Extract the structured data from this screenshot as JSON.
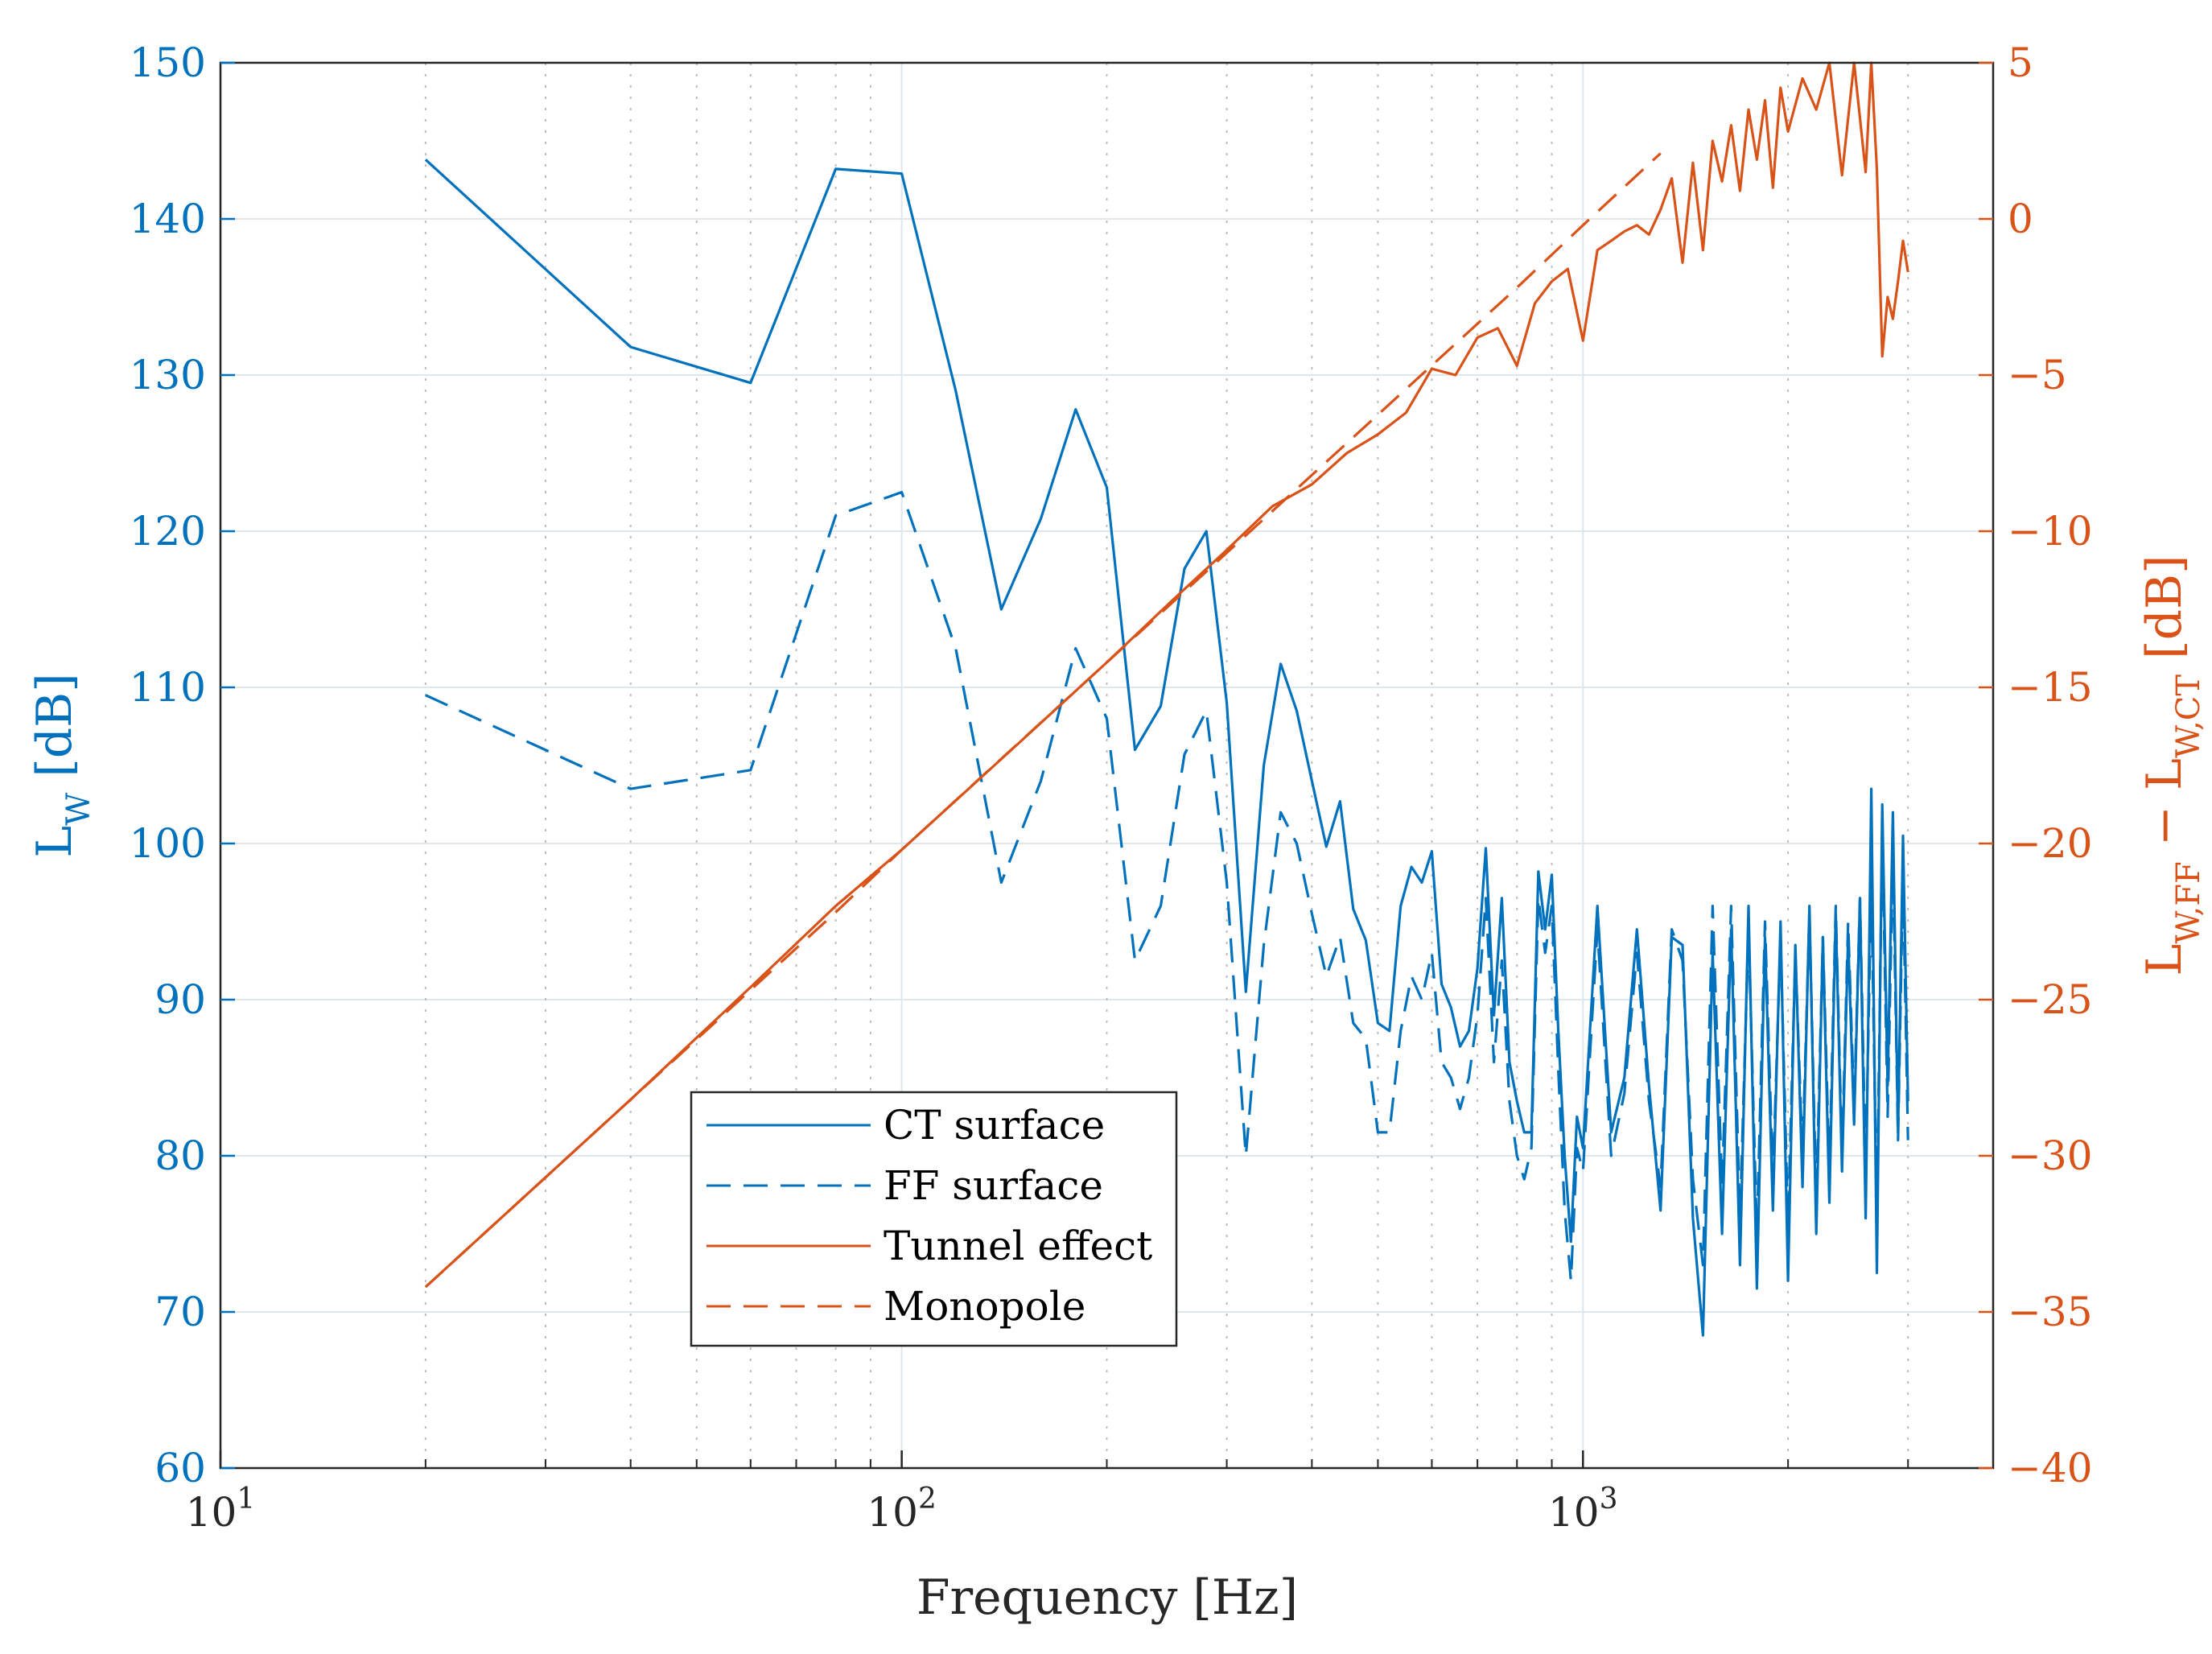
{
  "chart_data": {
    "type": "line",
    "xscale": "log",
    "xlim": [
      10,
      4000
    ],
    "xlabel": "Frequency [Hz]",
    "x_ticks": [
      {
        "value": 10,
        "base": "10",
        "exp": "1"
      },
      {
        "value": 100,
        "base": "10",
        "exp": "2"
      },
      {
        "value": 1000,
        "base": "10",
        "exp": "3"
      }
    ],
    "left_axis": {
      "label_main": "L",
      "label_sub": "W",
      "label_unit": " [dB]",
      "ylim": [
        60,
        150
      ],
      "ticks": [
        "60",
        "70",
        "80",
        "90",
        "100",
        "110",
        "120",
        "130",
        "140",
        "150"
      ],
      "color": "#0072BD"
    },
    "right_axis": {
      "label_a": "L",
      "label_a_sub": "W,FF",
      "label_minus": " − ",
      "label_b": "L",
      "label_b_sub": "W,CT",
      "label_unit": " [dB]",
      "ylim": [
        -40,
        5
      ],
      "ticks": [
        "−40",
        "−35",
        "−30",
        "−25",
        "−20",
        "−15",
        "−10",
        "−5",
        "0",
        "5"
      ],
      "color": "#D95319"
    },
    "series": [
      {
        "name": "CT surface",
        "axis": "left",
        "style": "solid",
        "color": "#0072BD",
        "x": [
          20,
          40,
          60,
          80,
          100,
          120,
          140,
          160,
          180,
          200,
          220,
          240,
          260,
          280,
          300,
          320,
          340,
          360,
          380,
          400,
          420,
          440,
          460,
          480,
          500,
          520,
          540,
          560,
          580,
          600,
          620,
          640,
          660,
          680,
          700,
          720,
          740,
          760,
          780,
          800,
          820,
          840,
          860,
          880,
          900,
          920,
          940,
          960,
          980,
          1000,
          1050,
          1100,
          1150,
          1200,
          1250,
          1300,
          1350,
          1400,
          1450,
          1500,
          1550,
          1600,
          1650,
          1700,
          1750,
          1800,
          1850,
          1900,
          1950,
          2000,
          2050,
          2100,
          2150,
          2200,
          2250,
          2300,
          2350,
          2400,
          2450,
          2500,
          2550,
          2600,
          2650,
          2700,
          2750,
          2800,
          2850,
          2900,
          2950,
          3000
        ],
        "values": [
          143.8,
          131.8,
          129.5,
          143.2,
          142.9,
          129.0,
          115.0,
          120.8,
          127.8,
          122.8,
          106.0,
          108.8,
          117.6,
          120.0,
          109.0,
          90.5,
          105.0,
          111.5,
          108.5,
          104.0,
          99.8,
          102.7,
          95.8,
          93.8,
          88.5,
          88.0,
          96.0,
          98.5,
          97.5,
          99.5,
          91.0,
          89.5,
          87.0,
          88.0,
          92.0,
          99.7,
          89.0,
          96.5,
          86.0,
          83.5,
          81.5,
          81.5,
          98.2,
          94.5,
          98.0,
          88.0,
          80.0,
          74.5,
          82.5,
          80.5,
          96.0,
          81.5,
          85.0,
          94.5,
          84.5,
          76.5,
          94.0,
          93.5,
          76.0,
          68.5,
          93.0,
          75.0,
          94.5,
          73.0,
          96.0,
          71.5,
          94.0,
          76.5,
          95.0,
          72.0,
          93.5,
          78.0,
          96.0,
          75.0,
          94.0,
          77.0,
          95.5,
          79.0,
          94.0,
          82.0,
          96.5,
          76.0,
          103.5,
          72.5,
          102.5,
          84.5,
          102.0,
          81.5,
          100.5,
          83.5
        ]
      },
      {
        "name": "FF surface",
        "axis": "left",
        "style": "dashed",
        "color": "#0072BD",
        "x": [
          20,
          40,
          60,
          80,
          100,
          120,
          140,
          160,
          180,
          200,
          220,
          240,
          260,
          280,
          300,
          320,
          340,
          360,
          380,
          400,
          420,
          440,
          460,
          480,
          500,
          520,
          540,
          560,
          580,
          600,
          620,
          640,
          660,
          680,
          700,
          720,
          740,
          760,
          780,
          800,
          820,
          840,
          860,
          880,
          900,
          920,
          940,
          960,
          980,
          1000,
          1050,
          1100,
          1150,
          1200,
          1250,
          1300,
          1350,
          1400,
          1450,
          1500,
          1550,
          1600,
          1650,
          1700,
          1750,
          1800,
          1850,
          1900,
          1950,
          2000,
          2050,
          2100,
          2150,
          2200,
          2250,
          2300,
          2350,
          2400,
          2450,
          2500,
          2550,
          2600,
          2650,
          2700,
          2750,
          2800,
          2850,
          2900,
          2950,
          3000
        ],
        "values": [
          109.5,
          103.5,
          104.7,
          121.0,
          122.5,
          112.5,
          97.5,
          104.0,
          112.5,
          108.0,
          92.5,
          96.0,
          105.7,
          108.5,
          97.5,
          80.0,
          93.5,
          102.0,
          100.0,
          95.5,
          91.5,
          94.0,
          88.5,
          87.5,
          81.5,
          81.5,
          88.0,
          91.5,
          90.0,
          93.0,
          86.0,
          85.0,
          83.0,
          85.0,
          89.0,
          96.5,
          86.0,
          92.5,
          83.5,
          80.0,
          78.5,
          80.5,
          96.5,
          93.0,
          96.0,
          85.5,
          76.5,
          72.0,
          80.5,
          79.0,
          94.5,
          80.0,
          84.0,
          93.0,
          83.5,
          78.0,
          94.5,
          92.5,
          78.5,
          73.0,
          96.0,
          78.0,
          96.0,
          76.0,
          94.5,
          75.0,
          95.0,
          78.5,
          94.0,
          75.5,
          93.0,
          80.0,
          95.5,
          77.0,
          94.0,
          79.0,
          96.0,
          80.0,
          95.0,
          83.0,
          96.5,
          79.0,
          97.5,
          76.0,
          101.0,
          82.5,
          99.5,
          81.0,
          98.0,
          81.0
        ]
      },
      {
        "name": "Tunnel effect",
        "axis": "right",
        "style": "solid",
        "color": "#D95319",
        "x": [
          20,
          40,
          60,
          80,
          100,
          150,
          200,
          250,
          300,
          350,
          400,
          450,
          500,
          550,
          600,
          650,
          700,
          750,
          800,
          850,
          900,
          950,
          1000,
          1050,
          1100,
          1150,
          1200,
          1250,
          1300,
          1350,
          1400,
          1450,
          1500,
          1550,
          1600,
          1650,
          1700,
          1750,
          1800,
          1850,
          1900,
          1950,
          2000,
          2100,
          2200,
          2300,
          2400,
          2500,
          2600,
          2650,
          2700,
          2750,
          2800,
          2850,
          2900,
          2950,
          3000
        ],
        "values": [
          -34.2,
          -28.2,
          -24.6,
          -22.0,
          -20.2,
          -16.7,
          -14.2,
          -12.2,
          -10.6,
          -9.2,
          -8.5,
          -7.5,
          -6.9,
          -6.2,
          -4.8,
          -5.0,
          -3.8,
          -3.5,
          -4.7,
          -2.7,
          -2.0,
          -1.6,
          -3.9,
          -1.0,
          -0.7,
          -0.4,
          -0.2,
          -0.5,
          0.3,
          1.3,
          -1.4,
          1.8,
          -1.0,
          2.5,
          1.2,
          3.0,
          0.9,
          3.5,
          1.9,
          3.8,
          1.0,
          4.2,
          2.8,
          4.5,
          3.5,
          5.0,
          1.4,
          5.0,
          1.5,
          5.0,
          1.6,
          -4.4,
          -2.5,
          -3.2,
          -2.0,
          -0.7,
          -1.7
        ]
      },
      {
        "name": "Monopole",
        "axis": "right",
        "style": "dashed",
        "color": "#D95319",
        "x": [
          20,
          40,
          80,
          100,
          200,
          400,
          800,
          1000,
          1300
        ],
        "values": [
          -34.2,
          -28.2,
          -22.2,
          -20.2,
          -14.2,
          -8.2,
          -2.2,
          -0.2,
          2.1
        ]
      }
    ]
  }
}
